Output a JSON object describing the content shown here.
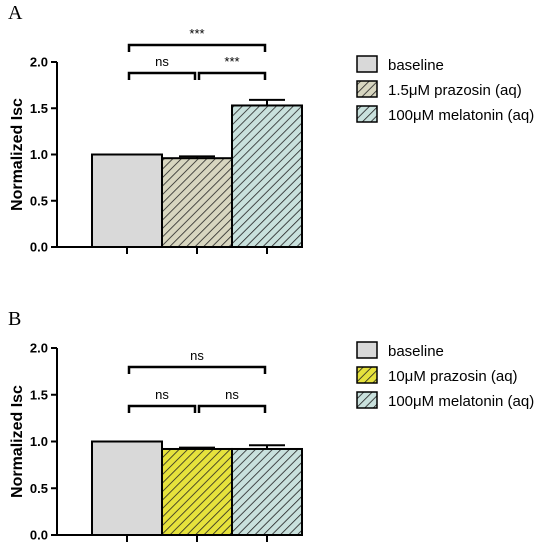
{
  "chart_data": [
    {
      "panel_letter": "A",
      "type": "bar",
      "ylabel": "Normalized Isc",
      "ylim": [
        0,
        2.0
      ],
      "yticks": [
        "0.0",
        "0.5",
        "1.0",
        "1.5",
        "2.0"
      ],
      "categories": [
        "baseline",
        "1.5μM prazosin (aq)",
        "100μM melatonin (aq)"
      ],
      "values": [
        1.0,
        0.96,
        1.53
      ],
      "errors": [
        0.0,
        0.02,
        0.06
      ],
      "colors": [
        "#d9d9d9",
        "#d8d6c0",
        "#c9e1dd"
      ],
      "patterns": [
        "solid",
        "hatch",
        "hatch"
      ],
      "significance": [
        {
          "from": 0,
          "to": 2,
          "label": "***"
        },
        {
          "from": 0,
          "to": 1,
          "label": "ns"
        },
        {
          "from": 1,
          "to": 2,
          "label": "***"
        }
      ],
      "legend": [
        {
          "label": "baseline"
        },
        {
          "label": "1.5μM prazosin (aq)"
        },
        {
          "label": "100μM melatonin (aq)"
        }
      ]
    },
    {
      "panel_letter": "B",
      "type": "bar",
      "ylabel": "Normalized Isc",
      "ylim": [
        0,
        2.0
      ],
      "yticks": [
        "0.0",
        "0.5",
        "1.0",
        "1.5",
        "2.0"
      ],
      "categories": [
        "baseline",
        "10μM prazosin (aq)",
        "100μM melatonin (aq)"
      ],
      "values": [
        1.0,
        0.92,
        0.92
      ],
      "errors": [
        0.0,
        0.015,
        0.04
      ],
      "colors": [
        "#d9d9d9",
        "#e6e23c",
        "#c9e1dd"
      ],
      "patterns": [
        "solid",
        "hatch",
        "hatch"
      ],
      "significance": [
        {
          "from": 0,
          "to": 2,
          "label": "ns"
        },
        {
          "from": 0,
          "to": 1,
          "label": "ns"
        },
        {
          "from": 1,
          "to": 2,
          "label": "ns"
        }
      ],
      "legend": [
        {
          "label": "baseline"
        },
        {
          "label": "10μM prazosin (aq)"
        },
        {
          "label": "100μM melatonin (aq)"
        }
      ]
    }
  ]
}
